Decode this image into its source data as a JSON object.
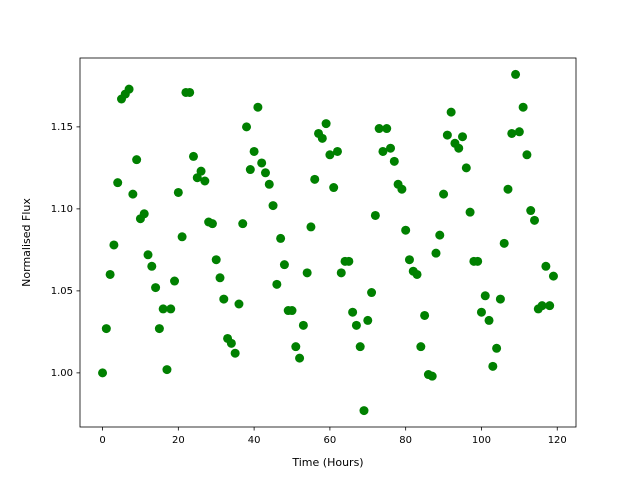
{
  "chart_data": {
    "type": "scatter",
    "xlabel": "Time (Hours)",
    "ylabel": "Normalised Flux",
    "color": "#008000",
    "x": [
      0,
      1,
      2,
      3,
      4,
      5,
      6,
      7,
      8,
      9,
      10,
      11,
      12,
      13,
      14,
      15,
      16,
      17,
      18,
      19,
      20,
      21,
      22,
      23,
      24,
      25,
      26,
      27,
      28,
      29,
      30,
      31,
      32,
      33,
      34,
      35,
      36,
      37,
      38,
      39,
      40,
      41,
      42,
      43,
      44,
      45,
      46,
      47,
      48,
      49,
      50,
      51,
      52,
      53,
      54,
      55,
      56,
      57,
      58,
      59,
      60,
      61,
      62,
      63,
      64,
      65,
      66,
      67,
      68,
      69,
      70,
      71,
      72,
      73,
      74,
      75,
      76,
      77,
      78,
      79,
      80,
      81,
      82,
      83,
      84,
      85,
      86,
      87,
      88,
      89,
      90,
      91,
      92,
      93,
      94,
      95,
      96,
      97,
      98,
      99,
      100,
      101,
      102,
      103,
      104,
      105,
      106,
      107,
      108,
      109,
      110,
      111,
      112,
      113,
      114,
      115,
      116,
      117,
      118,
      119
    ],
    "values": [
      1.0,
      1.027,
      1.06,
      1.078,
      1.116,
      1.167,
      1.17,
      1.173,
      1.109,
      1.13,
      1.094,
      1.097,
      1.072,
      1.065,
      1.052,
      1.027,
      1.039,
      1.002,
      1.039,
      1.056,
      1.11,
      1.083,
      1.171,
      1.171,
      1.132,
      1.119,
      1.123,
      1.117,
      1.092,
      1.091,
      1.069,
      1.058,
      1.045,
      1.021,
      1.018,
      1.012,
      1.042,
      1.091,
      1.15,
      1.124,
      1.135,
      1.162,
      1.128,
      1.122,
      1.115,
      1.102,
      1.054,
      1.082,
      1.066,
      1.038,
      1.038,
      1.016,
      1.009,
      1.029,
      1.061,
      1.089,
      1.118,
      1.146,
      1.143,
      1.152,
      1.133,
      1.113,
      1.135,
      1.061,
      1.068,
      1.068,
      1.037,
      1.029,
      1.016,
      0.977,
      1.032,
      1.049,
      1.096,
      1.149,
      1.135,
      1.149,
      1.137,
      1.129,
      1.115,
      1.112,
      1.087,
      1.069,
      1.062,
      1.06,
      1.016,
      1.035,
      0.999,
      0.998,
      1.073,
      1.084,
      1.109,
      1.145,
      1.159,
      1.14,
      1.137,
      1.144,
      1.125,
      1.098,
      1.068,
      1.068,
      1.037,
      1.047,
      1.032,
      1.004,
      1.015,
      1.045,
      1.079,
      1.112,
      1.146,
      1.182,
      1.147,
      1.162,
      1.133,
      1.099,
      1.093,
      1.039,
      1.041,
      1.065,
      1.041,
      1.059
    ],
    "xlim": [
      -5.95,
      124.95
    ],
    "ylim": [
      0.967,
      1.192
    ],
    "xticks": [
      0,
      20,
      40,
      60,
      80,
      100,
      120
    ],
    "yticks": [
      {
        "value": 1.0,
        "label": "1.00"
      },
      {
        "value": 1.05,
        "label": "1.05"
      },
      {
        "value": 1.1,
        "label": "1.10"
      },
      {
        "value": 1.15,
        "label": "1.15"
      }
    ]
  }
}
